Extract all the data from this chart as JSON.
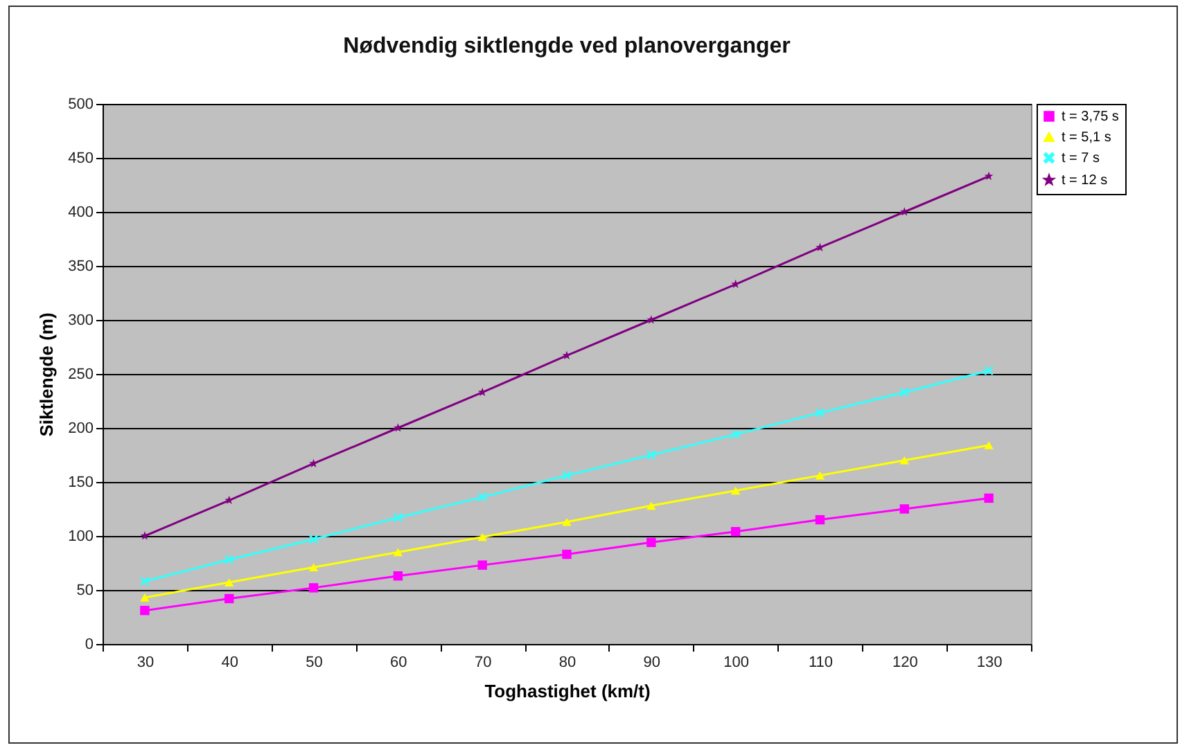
{
  "chart_data": {
    "type": "line",
    "title": "Nødvendig siktlengde ved planoverganger",
    "xlabel": "Toghastighet (km/t)",
    "ylabel": "Siktlengde (m)",
    "categories": [
      "30",
      "40",
      "50",
      "60",
      "70",
      "80",
      "90",
      "100",
      "110",
      "120",
      "130"
    ],
    "series": [
      {
        "name": "t = 3,75 s",
        "color": "#ff00ff",
        "marker": "square",
        "values": [
          31,
          42,
          52,
          63,
          73,
          83,
          94,
          104,
          115,
          125,
          135
        ]
      },
      {
        "name": "t = 5,1 s",
        "color": "#ffff00",
        "marker": "triangle",
        "values": [
          43,
          57,
          71,
          85,
          99,
          113,
          128,
          142,
          156,
          170,
          184
        ]
      },
      {
        "name": "t = 7 s",
        "color": "#33ffff",
        "marker": "cross",
        "values": [
          58,
          78,
          97,
          117,
          136,
          156,
          175,
          194,
          214,
          233,
          253
        ]
      },
      {
        "name": "t = 12 s",
        "color": "#800080",
        "marker": "star",
        "values": [
          100,
          133,
          167,
          200,
          233,
          267,
          300,
          333,
          367,
          400,
          433
        ]
      }
    ],
    "ylim": [
      0,
      500
    ],
    "yticks": [
      0,
      50,
      100,
      150,
      200,
      250,
      300,
      350,
      400,
      450,
      500
    ],
    "grid": "y",
    "legend": "right"
  }
}
